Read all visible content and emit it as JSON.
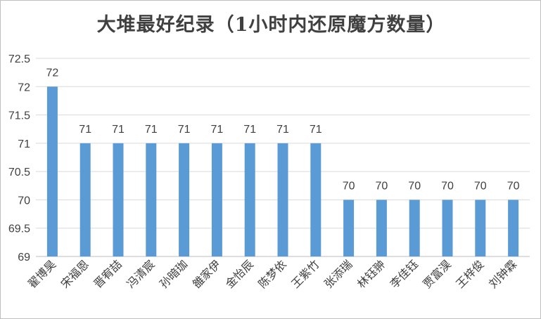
{
  "chart_data": {
    "type": "bar",
    "title": "大堆最好纪录（1小时内还原魔方数量）",
    "xlabel": "",
    "ylabel": "",
    "categories": [
      "翟博昊",
      "宋福恩",
      "晋宥喆",
      "冯清宸",
      "孙暗珈",
      "雒家伊",
      "金怡辰",
      "陈梦依",
      "王紫竹",
      "张添瑞",
      "林钰翀",
      "李佳钰",
      "贾富淏",
      "王梓俊",
      "刘钟霖"
    ],
    "values": [
      72,
      71,
      71,
      71,
      71,
      71,
      71,
      71,
      71,
      70,
      70,
      70,
      70,
      70,
      70
    ],
    "value_labels": [
      "72",
      "71",
      "71",
      "71",
      "71",
      "71",
      "71",
      "71",
      "71",
      "70",
      "70",
      "70",
      "70",
      "70",
      "70"
    ],
    "ylim": [
      69,
      72.5
    ],
    "yticks": [
      "69",
      "69.5",
      "70",
      "70.5",
      "71",
      "71.5",
      "72",
      "72.5"
    ],
    "grid": true,
    "legend": "none",
    "bar_color": "#5b9bd5",
    "grid_color": "#d9d9d9",
    "axis_color": "#bfbfbf",
    "text_color": "#404040"
  }
}
